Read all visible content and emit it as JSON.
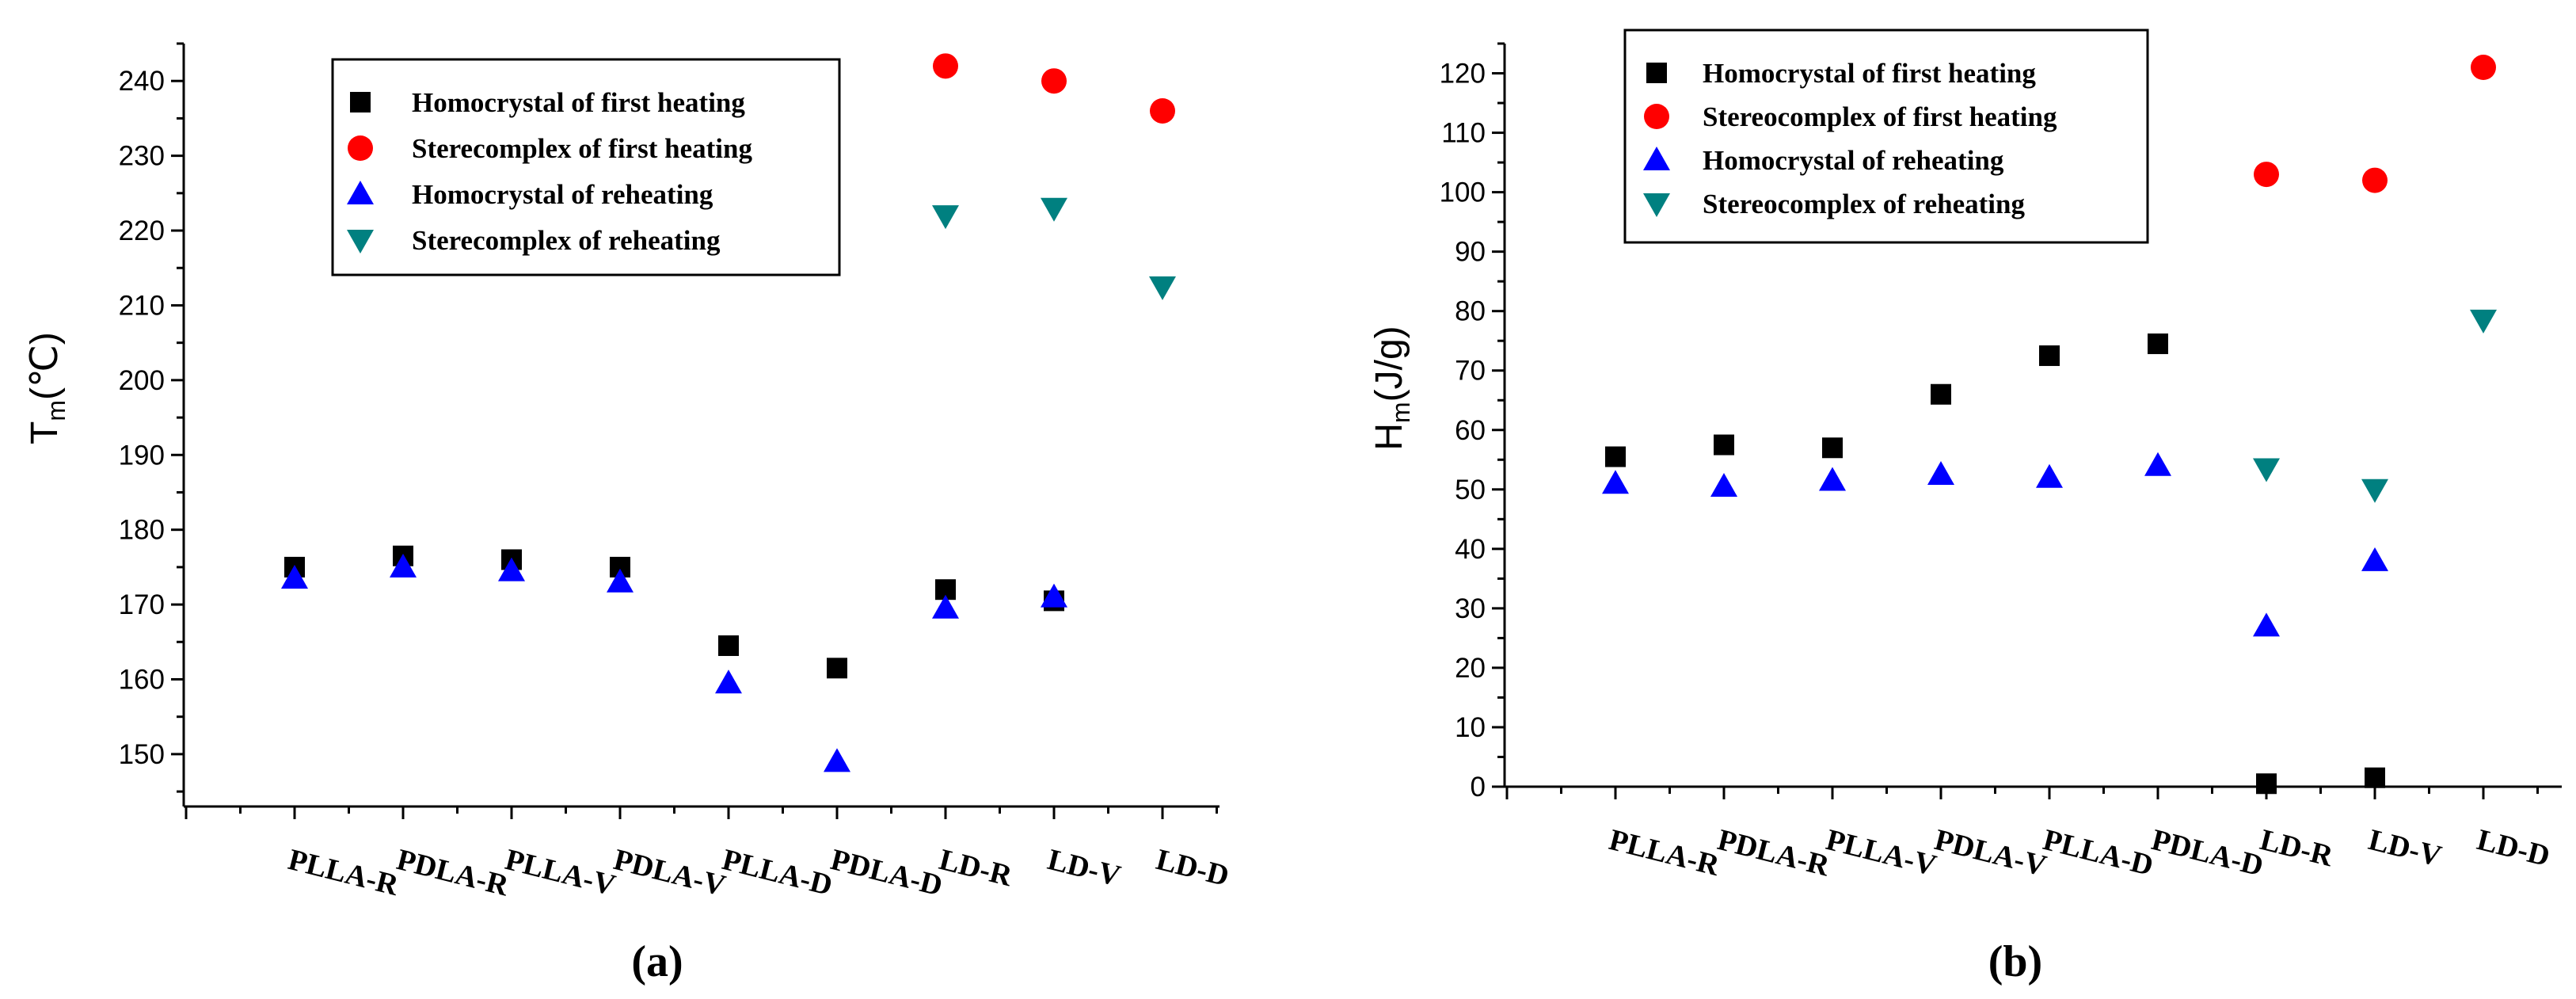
{
  "chart_data": [
    {
      "type": "scatter",
      "panel_label": "(a)",
      "ylabel_main": "T",
      "ylabel_sub": "m",
      "ylabel_unit": "(℃)",
      "ylim": [
        143,
        245
      ],
      "yticks": [
        150,
        160,
        170,
        180,
        190,
        200,
        210,
        220,
        230,
        240
      ],
      "categories": [
        "PLLA-R",
        "PDLA-R",
        "PLLA-V",
        "PDLA-V",
        "PLLA-D",
        "PDLA-D",
        "LD-R",
        "LD-V",
        "LD-D"
      ],
      "legend_position": "top-center",
      "series": [
        {
          "name": "Homocrystal of first heating",
          "marker": "square",
          "color": "#000000",
          "values": [
            175,
            176.5,
            176,
            175,
            164.5,
            161.5,
            172,
            170.5,
            null
          ]
        },
        {
          "name": "Sterecomplex of first heating",
          "marker": "circle",
          "color": "#ff0000",
          "values": [
            null,
            null,
            null,
            null,
            null,
            null,
            242,
            240,
            236
          ]
        },
        {
          "name": "Homocrystal of reheating",
          "marker": "triangle-up",
          "color": "#0000ff",
          "values": [
            173.5,
            175,
            174.5,
            173,
            159.5,
            149,
            169.5,
            171,
            null
          ]
        },
        {
          "name": "Sterecomplex of reheating",
          "marker": "triangle-down",
          "color": "#008080",
          "values": [
            null,
            null,
            null,
            null,
            null,
            null,
            222,
            223,
            212.5
          ]
        }
      ]
    },
    {
      "type": "scatter",
      "panel_label": "(b)",
      "ylabel_main": "H",
      "ylabel_sub": "m",
      "ylabel_unit": "(J/g)",
      "ylim": [
        0,
        125
      ],
      "yticks": [
        0,
        10,
        20,
        30,
        40,
        50,
        60,
        70,
        80,
        90,
        100,
        110,
        120
      ],
      "categories": [
        "PLLA-R",
        "PDLA-R",
        "PLLA-V",
        "PDLA-V",
        "PLLA-D",
        "PDLA-D",
        "LD-R",
        "LD-V",
        "LD-D"
      ],
      "legend_position": "top-center",
      "series": [
        {
          "name": "Homocrystal of first heating",
          "marker": "square",
          "color": "#000000",
          "values": [
            55.5,
            57.5,
            57,
            66,
            72.5,
            74.5,
            0.5,
            1.5,
            null
          ]
        },
        {
          "name": "Stereocomplex of first heating",
          "marker": "circle",
          "color": "#ff0000",
          "values": [
            null,
            null,
            null,
            null,
            null,
            null,
            103,
            102,
            121
          ]
        },
        {
          "name": "Homocrystal of reheating",
          "marker": "triangle-up",
          "color": "#0000ff",
          "values": [
            51,
            50.5,
            51.5,
            52.5,
            52,
            54,
            27,
            38,
            null
          ]
        },
        {
          "name": "Stereocomplex of reheating",
          "marker": "triangle-down",
          "color": "#008080",
          "values": [
            null,
            null,
            null,
            null,
            null,
            null,
            53.5,
            50,
            78.5
          ]
        }
      ]
    }
  ]
}
